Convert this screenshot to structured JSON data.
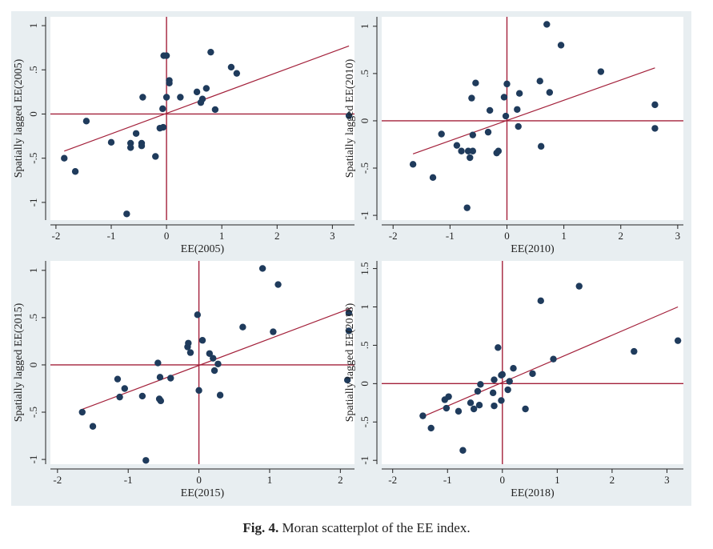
{
  "caption": {
    "label": "Fig. 4.",
    "text": "Moran scatterplot of the EE index."
  },
  "colors": {
    "panel_bg": "#e8eef1",
    "plot_bg": "#ffffff",
    "points": "#1f3b5c",
    "lines": "#a3203a",
    "axes": "#222222"
  },
  "chart_data": [
    {
      "type": "scatter",
      "xlabel": "EE(2005)",
      "ylabel": "Spatially lagged EE(2005)",
      "xlim": [
        -2.1,
        3.4
      ],
      "ylim": [
        -1.2,
        1.1
      ],
      "xticks": [
        -2,
        -1,
        0,
        1,
        2,
        3
      ],
      "xtick_labels": [
        "-2",
        "-1",
        "0",
        "1",
        "2",
        "3"
      ],
      "yticks": [
        -1,
        -0.5,
        0,
        0.5,
        1
      ],
      "ytick_labels": [
        "-1",
        "-.5",
        "0",
        ".5",
        "1"
      ],
      "fit_line": {
        "x": [
          -1.85,
          3.3
        ],
        "y": [
          -0.42,
          0.77
        ]
      },
      "points": [
        {
          "x": -1.85,
          "y": -0.5
        },
        {
          "x": -1.65,
          "y": -0.65
        },
        {
          "x": -1.45,
          "y": -0.08
        },
        {
          "x": -1.0,
          "y": -0.32
        },
        {
          "x": -0.72,
          "y": -1.13
        },
        {
          "x": -0.65,
          "y": -0.33
        },
        {
          "x": -0.65,
          "y": -0.38
        },
        {
          "x": -0.55,
          "y": -0.22
        },
        {
          "x": -0.45,
          "y": -0.33
        },
        {
          "x": -0.45,
          "y": -0.36
        },
        {
          "x": -0.43,
          "y": 0.19
        },
        {
          "x": -0.2,
          "y": -0.48
        },
        {
          "x": -0.12,
          "y": -0.16
        },
        {
          "x": -0.06,
          "y": -0.15
        },
        {
          "x": -0.07,
          "y": 0.06
        },
        {
          "x": -0.05,
          "y": 0.66
        },
        {
          "x": 0.0,
          "y": 0.66
        },
        {
          "x": 0.0,
          "y": 0.19
        },
        {
          "x": 0.05,
          "y": 0.38
        },
        {
          "x": 0.05,
          "y": 0.35
        },
        {
          "x": 0.25,
          "y": 0.19
        },
        {
          "x": 0.55,
          "y": 0.25
        },
        {
          "x": 0.62,
          "y": 0.13
        },
        {
          "x": 0.65,
          "y": 0.17
        },
        {
          "x": 0.72,
          "y": 0.29
        },
        {
          "x": 0.8,
          "y": 0.7
        },
        {
          "x": 0.88,
          "y": 0.05
        },
        {
          "x": 1.17,
          "y": 0.53
        },
        {
          "x": 1.27,
          "y": 0.46
        },
        {
          "x": 3.3,
          "y": -0.02
        }
      ]
    },
    {
      "type": "scatter",
      "xlabel": "EE(2010)",
      "ylabel": "Spatially lagged EE(2010)",
      "xlim": [
        -2.2,
        3.1
      ],
      "ylim": [
        -1.05,
        1.1
      ],
      "xticks": [
        -2,
        -1,
        0,
        1,
        2,
        3
      ],
      "xtick_labels": [
        "-2",
        "-1",
        "0",
        "1",
        "2",
        "3"
      ],
      "yticks": [
        -1,
        -0.5,
        0,
        0.5,
        1
      ],
      "ytick_labels": [
        "-1",
        "-.5",
        "0",
        ".5",
        "1"
      ],
      "fit_line": {
        "x": [
          -1.65,
          2.6
        ],
        "y": [
          -0.35,
          0.56
        ]
      },
      "points": [
        {
          "x": -1.65,
          "y": -0.46
        },
        {
          "x": -1.3,
          "y": -0.6
        },
        {
          "x": -1.15,
          "y": -0.14
        },
        {
          "x": -0.88,
          "y": -0.26
        },
        {
          "x": -0.8,
          "y": -0.32
        },
        {
          "x": -0.7,
          "y": -0.92
        },
        {
          "x": -0.68,
          "y": -0.32
        },
        {
          "x": -0.65,
          "y": -0.39
        },
        {
          "x": -0.62,
          "y": 0.24
        },
        {
          "x": -0.6,
          "y": -0.32
        },
        {
          "x": -0.6,
          "y": -0.15
        },
        {
          "x": -0.55,
          "y": 0.4
        },
        {
          "x": -0.33,
          "y": -0.12
        },
        {
          "x": -0.3,
          "y": 0.11
        },
        {
          "x": -0.18,
          "y": -0.34
        },
        {
          "x": -0.15,
          "y": -0.32
        },
        {
          "x": -0.05,
          "y": 0.25
        },
        {
          "x": -0.02,
          "y": 0.05
        },
        {
          "x": 0.0,
          "y": 0.39
        },
        {
          "x": 0.18,
          "y": 0.12
        },
        {
          "x": 0.2,
          "y": -0.06
        },
        {
          "x": 0.22,
          "y": 0.29
        },
        {
          "x": 0.58,
          "y": 0.42
        },
        {
          "x": 0.6,
          "y": -0.27
        },
        {
          "x": 0.7,
          "y": 1.02
        },
        {
          "x": 0.75,
          "y": 0.3
        },
        {
          "x": 0.95,
          "y": 0.8
        },
        {
          "x": 1.65,
          "y": 0.52
        },
        {
          "x": 2.6,
          "y": 0.17
        },
        {
          "x": 2.6,
          "y": -0.08
        }
      ]
    },
    {
      "type": "scatter",
      "xlabel": "EE(2015)",
      "ylabel": "Spatially lagged EE(2015)",
      "xlim": [
        -2.1,
        2.2
      ],
      "ylim": [
        -1.05,
        1.1
      ],
      "xticks": [
        -2,
        -1,
        0,
        1,
        2
      ],
      "xtick_labels": [
        "-2",
        "-1",
        "0",
        "1",
        "2"
      ],
      "yticks": [
        -1,
        -0.5,
        0,
        0.5,
        1
      ],
      "ytick_labels": [
        "-1",
        "-.5",
        "0",
        ".5",
        "1"
      ],
      "fit_line": {
        "x": [
          -1.65,
          2.15
        ],
        "y": [
          -0.47,
          0.6
        ]
      },
      "points": [
        {
          "x": -1.65,
          "y": -0.5
        },
        {
          "x": -1.5,
          "y": -0.65
        },
        {
          "x": -1.15,
          "y": -0.15
        },
        {
          "x": -1.12,
          "y": -0.34
        },
        {
          "x": -1.05,
          "y": -0.25
        },
        {
          "x": -0.8,
          "y": -0.33
        },
        {
          "x": -0.75,
          "y": -1.01
        },
        {
          "x": -0.58,
          "y": 0.02
        },
        {
          "x": -0.56,
          "y": -0.36
        },
        {
          "x": -0.55,
          "y": -0.13
        },
        {
          "x": -0.54,
          "y": -0.38
        },
        {
          "x": -0.4,
          "y": -0.14
        },
        {
          "x": -0.16,
          "y": 0.19
        },
        {
          "x": -0.15,
          "y": 0.23
        },
        {
          "x": -0.12,
          "y": 0.13
        },
        {
          "x": -0.02,
          "y": 0.53
        },
        {
          "x": 0.0,
          "y": -0.27
        },
        {
          "x": 0.05,
          "y": 0.26
        },
        {
          "x": 0.15,
          "y": 0.12
        },
        {
          "x": 0.2,
          "y": 0.07
        },
        {
          "x": 0.22,
          "y": -0.06
        },
        {
          "x": 0.27,
          "y": 0.01
        },
        {
          "x": 0.3,
          "y": -0.32
        },
        {
          "x": 0.62,
          "y": 0.4
        },
        {
          "x": 0.9,
          "y": 1.02
        },
        {
          "x": 1.05,
          "y": 0.35
        },
        {
          "x": 1.12,
          "y": 0.85
        },
        {
          "x": 2.12,
          "y": 0.55
        },
        {
          "x": 2.12,
          "y": 0.36
        },
        {
          "x": 2.1,
          "y": -0.16
        }
      ]
    },
    {
      "type": "scatter",
      "xlabel": "EE(2018)",
      "ylabel": "Spatially lagged EE(2018)",
      "xlim": [
        -2.2,
        3.3
      ],
      "ylim": [
        -1.05,
        1.6
      ],
      "xticks": [
        -2,
        -1,
        0,
        1,
        2,
        3
      ],
      "xtick_labels": [
        "-2",
        "-1",
        "0",
        "1",
        "2",
        "3"
      ],
      "yticks": [
        -1,
        -0.5,
        0,
        0.5,
        1,
        1.5
      ],
      "ytick_labels": [
        "-1",
        "-.5",
        "0",
        ".5",
        "1",
        "1.5"
      ],
      "fit_line": {
        "x": [
          -1.45,
          3.2
        ],
        "y": [
          -0.43,
          1.0
        ]
      },
      "points": [
        {
          "x": -1.45,
          "y": -0.42
        },
        {
          "x": -1.3,
          "y": -0.58
        },
        {
          "x": -1.05,
          "y": -0.21
        },
        {
          "x": -1.02,
          "y": -0.32
        },
        {
          "x": -0.98,
          "y": -0.17
        },
        {
          "x": -0.8,
          "y": -0.36
        },
        {
          "x": -0.72,
          "y": -0.87
        },
        {
          "x": -0.58,
          "y": -0.25
        },
        {
          "x": -0.52,
          "y": -0.33
        },
        {
          "x": -0.45,
          "y": -0.1
        },
        {
          "x": -0.42,
          "y": -0.28
        },
        {
          "x": -0.4,
          "y": -0.01
        },
        {
          "x": -0.17,
          "y": -0.12
        },
        {
          "x": -0.15,
          "y": 0.05
        },
        {
          "x": -0.15,
          "y": -0.29
        },
        {
          "x": -0.08,
          "y": 0.47
        },
        {
          "x": -0.02,
          "y": 0.11
        },
        {
          "x": -0.02,
          "y": -0.22
        },
        {
          "x": 0.0,
          "y": 0.12
        },
        {
          "x": 0.1,
          "y": -0.08
        },
        {
          "x": 0.13,
          "y": 0.03
        },
        {
          "x": 0.2,
          "y": 0.2
        },
        {
          "x": 0.42,
          "y": -0.33
        },
        {
          "x": 0.55,
          "y": 0.13
        },
        {
          "x": 0.7,
          "y": 1.08
        },
        {
          "x": 0.93,
          "y": 0.32
        },
        {
          "x": 1.4,
          "y": 1.27
        },
        {
          "x": 2.4,
          "y": 0.42
        },
        {
          "x": 3.2,
          "y": 0.56
        }
      ]
    }
  ]
}
